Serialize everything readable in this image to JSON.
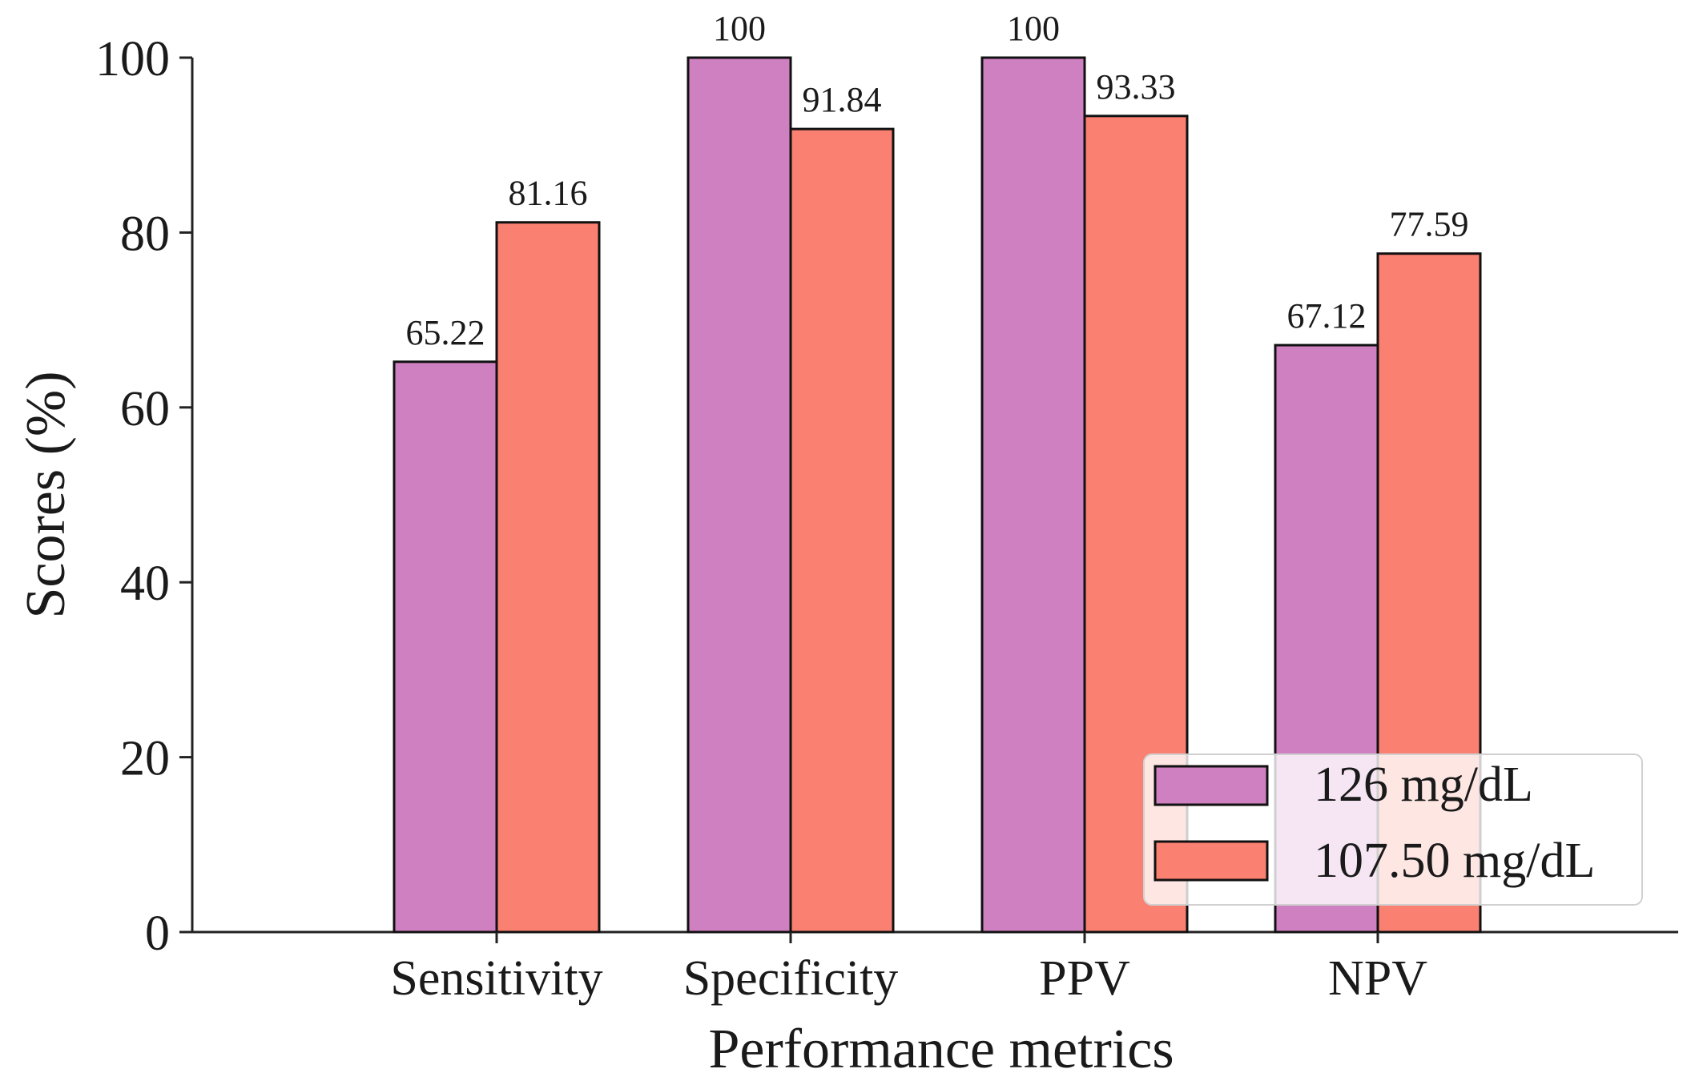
{
  "chart_data": {
    "type": "bar",
    "categories": [
      "Sensitivity",
      "Specificity",
      "PPV",
      "NPV"
    ],
    "series": [
      {
        "name": "126 mg/dL",
        "color": "#cf80c0",
        "values": [
          65.22,
          100,
          100,
          67.12
        ],
        "labels": [
          "65.22",
          "100",
          "100",
          "67.12"
        ]
      },
      {
        "name": "107.50 mg/dL",
        "color": "#fa8072",
        "values": [
          81.16,
          91.84,
          93.33,
          77.59
        ],
        "labels": [
          "81.16",
          "91.84",
          "93.33",
          "77.59"
        ]
      }
    ],
    "title": "",
    "xlabel": "Performance metrics",
    "ylabel": "Scores (%)",
    "ylim": [
      0,
      100
    ],
    "yticks": [
      0,
      20,
      40,
      60,
      80,
      100
    ],
    "ytick_labels": [
      "0",
      "20",
      "40",
      "60",
      "80",
      "100"
    ],
    "grid": false,
    "legend_position": "lower-right"
  }
}
